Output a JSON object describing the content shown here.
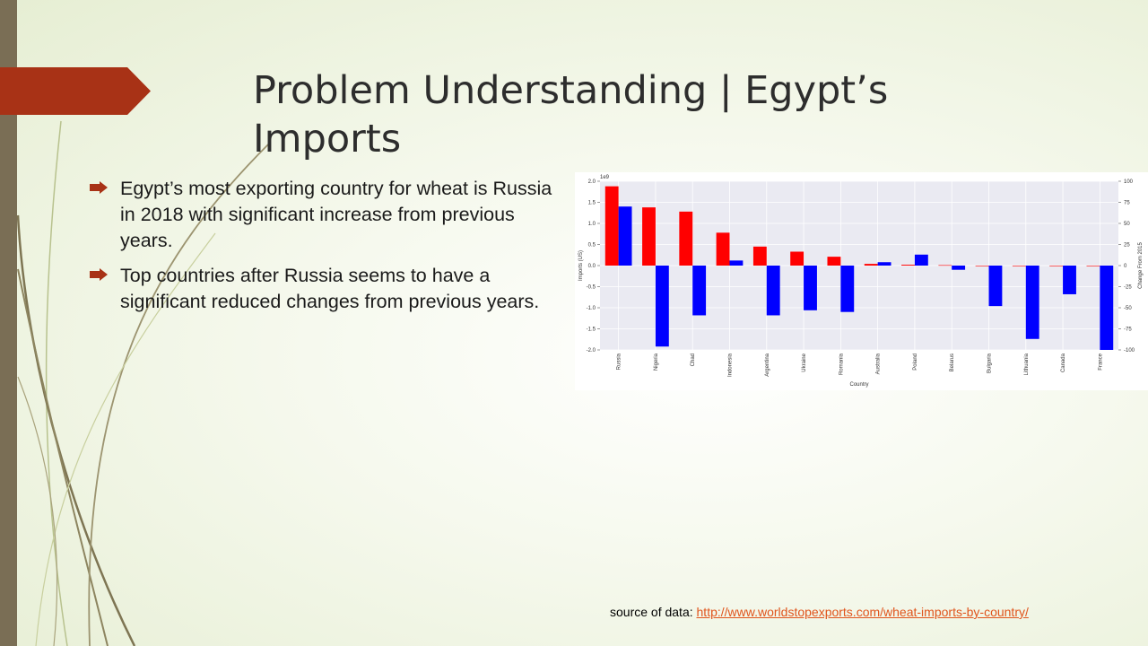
{
  "slide": {
    "title_line1": "Problem Understanding  | Egypt’s",
    "title_line2": "Imports",
    "bullets": [
      "Egypt’s most exporting country for wheat is Russia in 2018 with significant increase from previous years.",
      "Top countries after Russia seems to have a significant reduced changes from previous years."
    ],
    "source_label": "source of data: ",
    "source_link": "http://www.worldstopexports.com/wheat-imports-by-country/"
  },
  "icons": {
    "bullet": "arrow-bullet-icon"
  },
  "colors": {
    "imports": "#ff0000",
    "change": "#0000ff",
    "accent": "#a83216",
    "link": "#e0541c",
    "plot_bg": "#eaeaf2"
  },
  "chart_data": {
    "type": "bar",
    "categories": [
      "Russia",
      "Nigeria",
      "Chad",
      "Indonesia",
      "Argentina",
      "Ukraine",
      "Romania",
      "Australia",
      "Poland",
      "Belarus",
      "Bulgaria",
      "Lithuania",
      "Canada",
      "France"
    ],
    "series": [
      {
        "axis": "left",
        "values": [
          1.88,
          1.38,
          1.28,
          0.78,
          0.45,
          0.33,
          0.21,
          0.04,
          0.02,
          0.01,
          0,
          0,
          0,
          0
        ]
      },
      {
        "axis": "right",
        "values": [
          70,
          -96,
          -59,
          6,
          -59,
          -53,
          -55,
          4,
          13,
          -5,
          -48,
          -87,
          -34,
          -100
        ]
      }
    ],
    "xlabel": "Country",
    "ylabel": "Imports (US)",
    "ylabel_right": "Change From 2015",
    "y_exponent": "1e9",
    "ylim": [
      -2.0,
      2.0
    ],
    "ylim_right": [
      -100,
      100
    ],
    "yticks": [
      "2.0",
      "1.5",
      "1.0",
      "0.5",
      "0.0",
      "-0.5",
      "-1.0",
      "-1.5",
      "-2.0"
    ],
    "yticks_right": [
      "100",
      "75",
      "50",
      "25",
      "0",
      "-25",
      "-50",
      "-75",
      "-100"
    ],
    "grid": true
  }
}
